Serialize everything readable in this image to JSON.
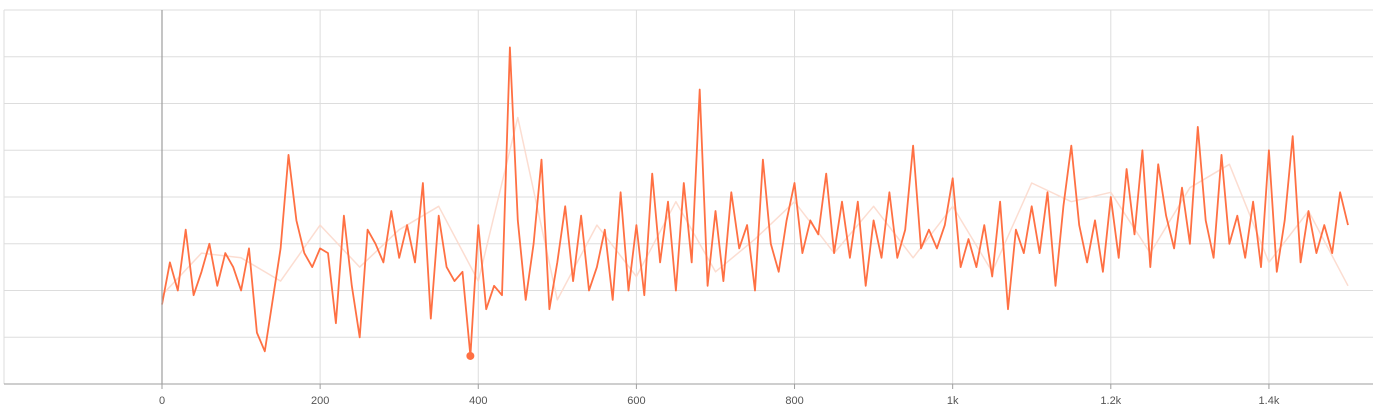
{
  "chart_data": {
    "type": "line",
    "title": "",
    "xlabel": "",
    "ylabel": "",
    "x_ticks": [
      {
        "value": 0,
        "label": "0"
      },
      {
        "value": 200,
        "label": "200"
      },
      {
        "value": 400,
        "label": "400"
      },
      {
        "value": 600,
        "label": "600"
      },
      {
        "value": 800,
        "label": "800"
      },
      {
        "value": 1000,
        "label": "1k"
      },
      {
        "value": 1200,
        "label": "1.2k"
      },
      {
        "value": 1400,
        "label": "1.4k"
      }
    ],
    "xlim": [
      0,
      1500
    ],
    "ylim": [
      0,
      8
    ],
    "grid": true,
    "legend": "none",
    "colors": {
      "smoothed": "#ff7043",
      "raw": "#fcd9cc",
      "grid": "#dddddd",
      "axis": "#9e9e9e",
      "marker": "#ff7043"
    },
    "series": [
      {
        "role": "raw",
        "x": [
          0,
          50,
          100,
          150,
          200,
          250,
          300,
          350,
          400,
          450,
          500,
          550,
          600,
          650,
          700,
          750,
          800,
          850,
          900,
          950,
          1000,
          1050,
          1100,
          1150,
          1200,
          1250,
          1300,
          1350,
          1400,
          1450,
          1500
        ],
        "y": [
          1.9,
          2.8,
          2.7,
          2.2,
          3.4,
          2.5,
          3.3,
          3.8,
          2.2,
          5.7,
          1.8,
          3.4,
          2.3,
          3.9,
          2.4,
          3.1,
          3.9,
          2.8,
          3.8,
          2.7,
          3.8,
          2.4,
          4.3,
          3.9,
          4.1,
          2.8,
          4.2,
          4.7,
          2.6,
          3.7,
          2.1
        ]
      },
      {
        "role": "smoothed",
        "x": [
          0,
          10,
          20,
          30,
          40,
          50,
          60,
          70,
          80,
          90,
          100,
          110,
          120,
          130,
          140,
          150,
          160,
          170,
          180,
          190,
          200,
          210,
          220,
          230,
          240,
          250,
          260,
          270,
          280,
          290,
          300,
          310,
          320,
          330,
          340,
          350,
          360,
          370,
          380,
          390,
          400,
          410,
          420,
          430,
          440,
          450,
          460,
          470,
          480,
          490,
          500,
          510,
          520,
          530,
          540,
          550,
          560,
          570,
          580,
          590,
          600,
          610,
          620,
          630,
          640,
          650,
          660,
          670,
          680,
          690,
          700,
          710,
          720,
          730,
          740,
          750,
          760,
          770,
          780,
          790,
          800,
          810,
          820,
          830,
          840,
          850,
          860,
          870,
          880,
          890,
          900,
          910,
          920,
          930,
          940,
          950,
          960,
          970,
          980,
          990,
          1000,
          1010,
          1020,
          1030,
          1040,
          1050,
          1060,
          1070,
          1080,
          1090,
          1100,
          1110,
          1120,
          1130,
          1140,
          1150,
          1160,
          1170,
          1180,
          1190,
          1200,
          1210,
          1220,
          1230,
          1240,
          1250,
          1260,
          1270,
          1280,
          1290,
          1300,
          1310,
          1320,
          1330,
          1340,
          1350,
          1360,
          1370,
          1380,
          1390,
          1400,
          1410,
          1420,
          1430,
          1440,
          1450,
          1460,
          1470,
          1480,
          1490,
          1500
        ],
        "y": [
          1.7,
          2.6,
          2.0,
          3.3,
          1.9,
          2.4,
          3.0,
          2.1,
          2.8,
          2.5,
          2.0,
          2.9,
          1.1,
          0.7,
          1.8,
          2.9,
          4.9,
          3.5,
          2.8,
          2.5,
          2.9,
          2.8,
          1.3,
          3.6,
          2.1,
          1.0,
          3.3,
          3.0,
          2.6,
          3.7,
          2.7,
          3.4,
          2.6,
          4.3,
          1.4,
          3.6,
          2.5,
          2.2,
          2.4,
          0.6,
          3.4,
          1.6,
          2.1,
          1.9,
          7.2,
          3.5,
          1.8,
          3.0,
          4.8,
          1.6,
          2.6,
          3.8,
          2.2,
          3.6,
          2.0,
          2.5,
          3.3,
          1.8,
          4.1,
          2.0,
          3.4,
          1.9,
          4.5,
          2.6,
          3.9,
          2.0,
          4.3,
          2.6,
          6.3,
          2.1,
          3.7,
          2.2,
          4.1,
          2.9,
          3.4,
          2.0,
          4.8,
          3.0,
          2.4,
          3.5,
          4.3,
          2.8,
          3.5,
          3.2,
          4.5,
          2.8,
          3.9,
          2.7,
          3.9,
          2.1,
          3.5,
          2.7,
          4.1,
          2.7,
          3.3,
          5.1,
          2.9,
          3.3,
          2.9,
          3.4,
          4.4,
          2.5,
          3.1,
          2.5,
          3.4,
          2.3,
          3.9,
          1.6,
          3.3,
          2.8,
          3.8,
          2.8,
          4.1,
          2.1,
          3.8,
          5.1,
          3.4,
          2.6,
          3.5,
          2.4,
          4.0,
          2.7,
          4.6,
          3.2,
          5.0,
          2.5,
          4.7,
          3.6,
          2.9,
          4.2,
          3.0,
          5.5,
          3.5,
          2.7,
          4.9,
          3.0,
          3.6,
          2.7,
          3.9,
          2.5,
          5.0,
          2.4,
          3.5,
          5.3,
          2.6,
          3.7,
          2.8,
          3.4,
          2.8,
          4.1,
          3.4
        ]
      }
    ],
    "marker": {
      "x": 390,
      "y": 0.6
    }
  }
}
